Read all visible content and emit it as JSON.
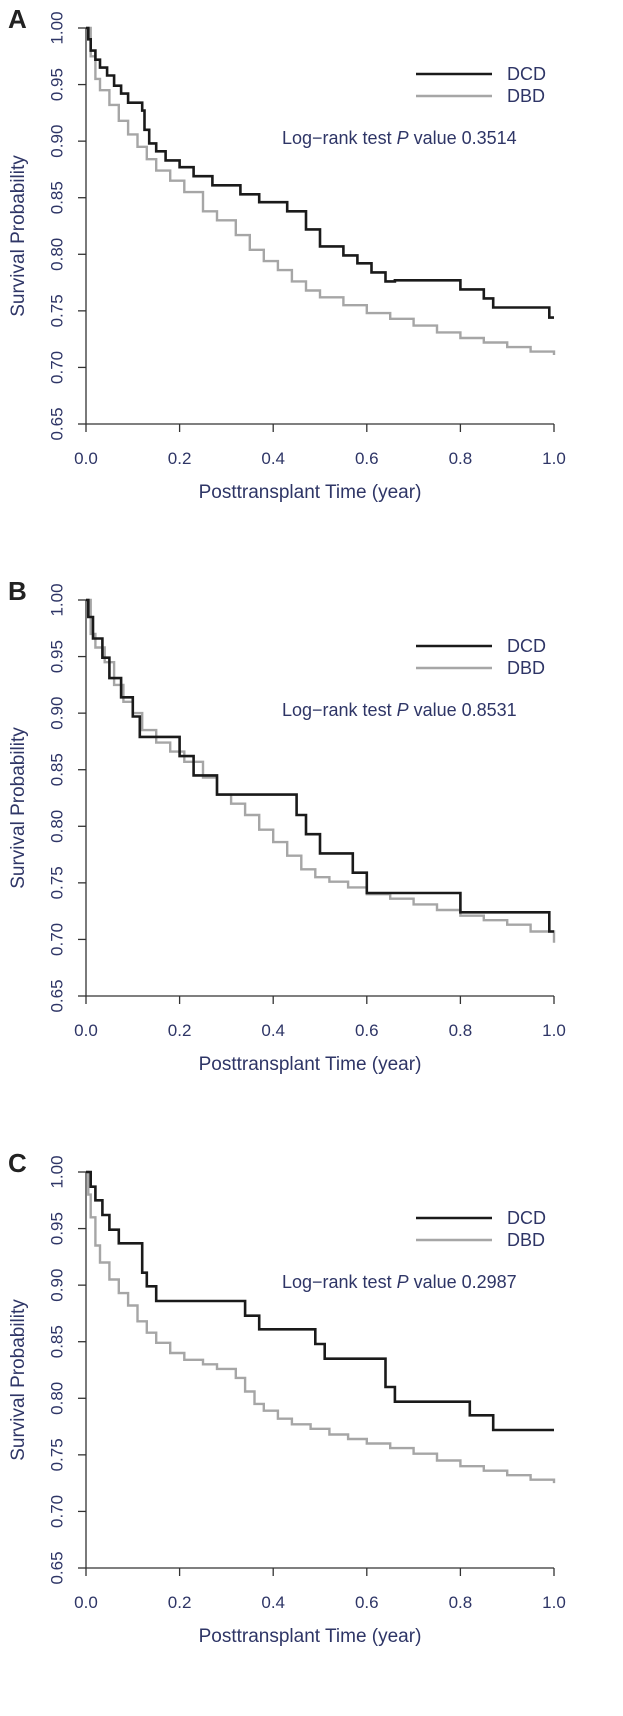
{
  "chart_data": [
    {
      "panel_label": "A",
      "type": "line",
      "step": true,
      "xlabel": "Posttransplant Time (year)",
      "ylabel": "Survival Probability",
      "xlim": [
        0,
        1
      ],
      "ylim": [
        0.65,
        1.0
      ],
      "xticks": [
        "0.0",
        "0.2",
        "0.4",
        "0.6",
        "0.8",
        "1.0"
      ],
      "yticks": [
        "0.65",
        "0.70",
        "0.75",
        "0.80",
        "0.85",
        "0.90",
        "0.95",
        "1.00"
      ],
      "grid": false,
      "legend_position": "top-right",
      "annotation": {
        "prefix": "Log−rank test ",
        "italic": "P",
        "middle": " value  ",
        "value": "0.3514"
      },
      "series": [
        {
          "name": "DCD",
          "color": "#1a1a1a",
          "x": [
            0,
            0.005,
            0.01,
            0.02,
            0.03,
            0.045,
            0.06,
            0.075,
            0.09,
            0.12,
            0.125,
            0.135,
            0.15,
            0.17,
            0.2,
            0.23,
            0.27,
            0.33,
            0.37,
            0.43,
            0.47,
            0.5,
            0.55,
            0.58,
            0.61,
            0.64,
            0.66,
            0.73,
            0.8,
            0.85,
            0.87,
            0.92,
            0.99,
            1.0
          ],
          "y": [
            1.0,
            0.99,
            0.98,
            0.972,
            0.965,
            0.958,
            0.949,
            0.942,
            0.934,
            0.927,
            0.91,
            0.898,
            0.891,
            0.883,
            0.877,
            0.869,
            0.861,
            0.853,
            0.846,
            0.838,
            0.822,
            0.807,
            0.799,
            0.792,
            0.784,
            0.776,
            0.777,
            0.777,
            0.769,
            0.761,
            0.753,
            0.753,
            0.744,
            0.744
          ]
        },
        {
          "name": "DBD",
          "color": "#a6a6a6",
          "x": [
            0,
            0.01,
            0.02,
            0.03,
            0.05,
            0.07,
            0.09,
            0.11,
            0.13,
            0.15,
            0.18,
            0.21,
            0.25,
            0.28,
            0.32,
            0.35,
            0.38,
            0.41,
            0.44,
            0.47,
            0.5,
            0.55,
            0.6,
            0.65,
            0.7,
            0.75,
            0.8,
            0.85,
            0.9,
            0.95,
            1.0
          ],
          "y": [
            1.0,
            0.975,
            0.955,
            0.945,
            0.932,
            0.918,
            0.906,
            0.895,
            0.884,
            0.874,
            0.865,
            0.855,
            0.838,
            0.83,
            0.817,
            0.804,
            0.794,
            0.786,
            0.776,
            0.768,
            0.762,
            0.755,
            0.748,
            0.743,
            0.737,
            0.731,
            0.726,
            0.722,
            0.718,
            0.714,
            0.711
          ]
        }
      ]
    },
    {
      "panel_label": "B",
      "type": "line",
      "step": true,
      "xlabel": "Posttransplant Time (year)",
      "ylabel": "Survival Probability",
      "xlim": [
        0,
        1
      ],
      "ylim": [
        0.65,
        1.0
      ],
      "xticks": [
        "0.0",
        "0.2",
        "0.4",
        "0.6",
        "0.8",
        "1.0"
      ],
      "yticks": [
        "0.65",
        "0.70",
        "0.75",
        "0.80",
        "0.85",
        "0.90",
        "0.95",
        "1.00"
      ],
      "grid": false,
      "legend_position": "top-right",
      "annotation": {
        "prefix": "Log−rank test ",
        "italic": "P",
        "middle": " value  ",
        "value": "0.8531"
      },
      "series": [
        {
          "name": "DCD",
          "color": "#1a1a1a",
          "x": [
            0,
            0.005,
            0.015,
            0.035,
            0.05,
            0.075,
            0.1,
            0.115,
            0.12,
            0.135,
            0.15,
            0.2,
            0.23,
            0.28,
            0.3,
            0.43,
            0.45,
            0.47,
            0.5,
            0.52,
            0.57,
            0.6,
            0.62,
            0.65,
            0.8,
            0.98,
            0.99,
            1.0
          ],
          "y": [
            1.0,
            0.985,
            0.966,
            0.949,
            0.931,
            0.914,
            0.897,
            0.879,
            0.879,
            0.879,
            0.879,
            0.862,
            0.845,
            0.828,
            0.828,
            0.828,
            0.81,
            0.793,
            0.776,
            0.776,
            0.759,
            0.741,
            0.741,
            0.741,
            0.724,
            0.724,
            0.707,
            0.707
          ]
        },
        {
          "name": "DBD",
          "color": "#a6a6a6",
          "x": [
            0,
            0.01,
            0.02,
            0.04,
            0.06,
            0.08,
            0.1,
            0.12,
            0.15,
            0.18,
            0.21,
            0.25,
            0.28,
            0.31,
            0.34,
            0.37,
            0.4,
            0.43,
            0.46,
            0.49,
            0.52,
            0.56,
            0.6,
            0.65,
            0.7,
            0.75,
            0.8,
            0.85,
            0.9,
            0.95,
            1.0
          ],
          "y": [
            1.0,
            0.97,
            0.958,
            0.945,
            0.925,
            0.91,
            0.9,
            0.885,
            0.874,
            0.866,
            0.857,
            0.843,
            0.828,
            0.82,
            0.81,
            0.797,
            0.786,
            0.774,
            0.762,
            0.755,
            0.751,
            0.746,
            0.74,
            0.736,
            0.731,
            0.726,
            0.721,
            0.717,
            0.713,
            0.707,
            0.697
          ]
        }
      ]
    },
    {
      "panel_label": "C",
      "type": "line",
      "step": true,
      "xlabel": "Posttransplant Time (year)",
      "ylabel": "Survival Probability",
      "xlim": [
        0,
        1
      ],
      "ylim": [
        0.65,
        1.0
      ],
      "xticks": [
        "0.0",
        "0.2",
        "0.4",
        "0.6",
        "0.8",
        "1.0"
      ],
      "yticks": [
        "0.65",
        "0.70",
        "0.75",
        "0.80",
        "0.85",
        "0.90",
        "0.95",
        "1.00"
      ],
      "grid": false,
      "legend_position": "top-right",
      "annotation": {
        "prefix": "Log−rank test ",
        "italic": "P",
        "middle": " value  ",
        "value": "0.2987"
      },
      "series": [
        {
          "name": "DCD",
          "color": "#1a1a1a",
          "x": [
            0,
            0.01,
            0.02,
            0.035,
            0.05,
            0.07,
            0.1,
            0.12,
            0.13,
            0.15,
            0.3,
            0.34,
            0.37,
            0.45,
            0.49,
            0.51,
            0.64,
            0.66,
            0.74,
            0.82,
            0.87,
            1.0
          ],
          "y": [
            1.0,
            0.987,
            0.975,
            0.962,
            0.949,
            0.937,
            0.937,
            0.911,
            0.899,
            0.886,
            0.886,
            0.873,
            0.861,
            0.861,
            0.848,
            0.835,
            0.81,
            0.797,
            0.797,
            0.785,
            0.772,
            0.772
          ]
        },
        {
          "name": "DBD",
          "color": "#a6a6a6",
          "x": [
            0,
            0.005,
            0.01,
            0.02,
            0.03,
            0.05,
            0.07,
            0.09,
            0.11,
            0.13,
            0.15,
            0.18,
            0.21,
            0.25,
            0.28,
            0.32,
            0.34,
            0.36,
            0.38,
            0.41,
            0.44,
            0.48,
            0.52,
            0.56,
            0.6,
            0.65,
            0.7,
            0.75,
            0.8,
            0.85,
            0.9,
            0.95,
            1.0
          ],
          "y": [
            1.0,
            0.98,
            0.96,
            0.935,
            0.92,
            0.905,
            0.893,
            0.882,
            0.868,
            0.858,
            0.849,
            0.84,
            0.834,
            0.83,
            0.826,
            0.818,
            0.806,
            0.795,
            0.789,
            0.782,
            0.777,
            0.773,
            0.768,
            0.764,
            0.76,
            0.756,
            0.751,
            0.745,
            0.74,
            0.736,
            0.732,
            0.728,
            0.725
          ]
        }
      ]
    }
  ]
}
